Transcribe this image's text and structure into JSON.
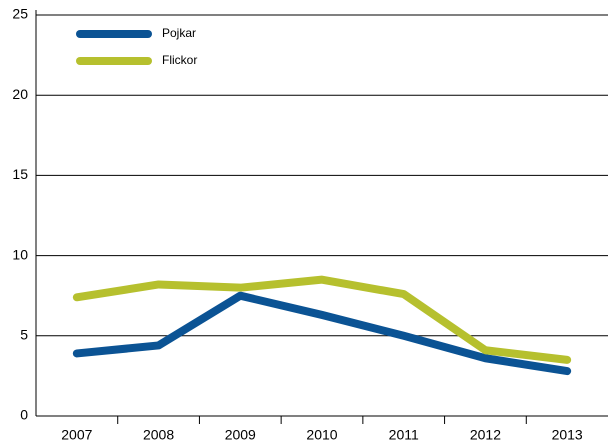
{
  "chart_data": {
    "type": "line",
    "categories": [
      "2007",
      "2008",
      "2009",
      "2010",
      "2011",
      "2012",
      "2013"
    ],
    "series": [
      {
        "name": "Pojkar",
        "color": "#0b5394",
        "values": [
          3.9,
          4.4,
          7.5,
          6.3,
          5.0,
          3.6,
          2.8
        ]
      },
      {
        "name": "Flickor",
        "color": "#b6c02e",
        "values": [
          7.4,
          8.2,
          8.0,
          8.5,
          7.6,
          4.1,
          3.5
        ]
      }
    ],
    "ylim": [
      0,
      25
    ],
    "yticks": [
      0,
      5,
      10,
      15,
      20,
      25
    ],
    "grid": true,
    "legend": "top-left"
  }
}
